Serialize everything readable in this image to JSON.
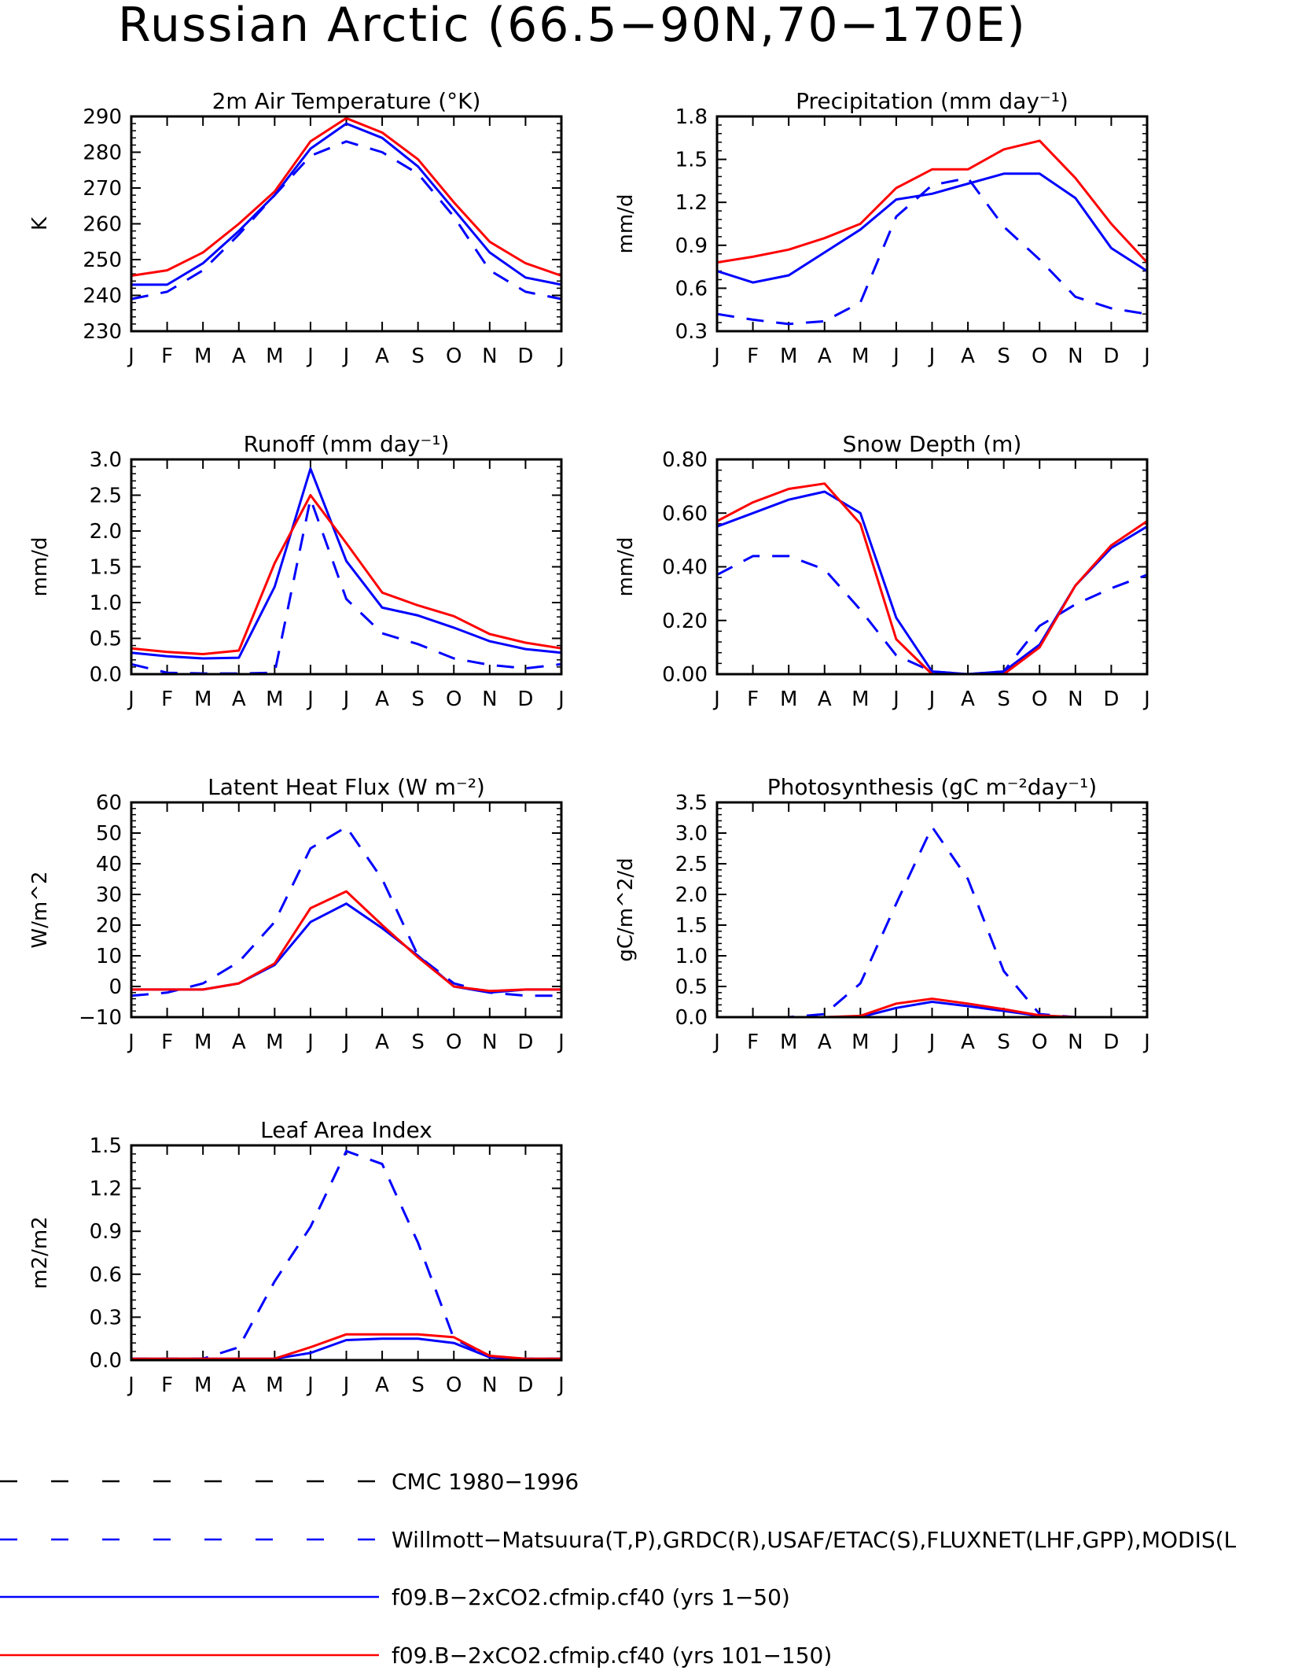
{
  "title": "Russian Arctic (66.5−90N,70−170E)",
  "colors": {
    "obs": "#0000ff",
    "model_a": "#0000ff",
    "model_b": "#ff0000",
    "axis": "#000000"
  },
  "months": [
    "J",
    "F",
    "M",
    "A",
    "M",
    "J",
    "J",
    "A",
    "S",
    "O",
    "N",
    "D",
    "J"
  ],
  "legend": [
    {
      "label": "CMC 1980−1996",
      "color": "#000000",
      "style": "dashed"
    },
    {
      "label": "Willmott−Matsuura(T,P),GRDC(R),USAF/ETAC(S),FLUXNET(LHF,GPP),MODIS(L",
      "color": "#0000ff",
      "style": "dashed"
    },
    {
      "label": "f09.B−2xCO2.cfmip.cf40 (yrs 1−50)",
      "color": "#0000ff",
      "style": "solid"
    },
    {
      "label": "f09.B−2xCO2.cfmip.cf40 (yrs 101−150)",
      "color": "#ff0000",
      "style": "solid"
    }
  ],
  "chart_data": [
    {
      "type": "line",
      "title": "2m Air Temperature (°K)",
      "ylabel": "K",
      "ylim": [
        230,
        290
      ],
      "yticks": [
        "230",
        "240",
        "250",
        "260",
        "270",
        "280",
        "290"
      ],
      "x": [
        "J",
        "F",
        "M",
        "A",
        "M",
        "J",
        "J",
        "A",
        "S",
        "O",
        "N",
        "D",
        "J"
      ],
      "series": [
        {
          "style": "obs",
          "values": [
            239,
            241,
            247,
            257,
            268,
            279,
            283,
            280,
            274,
            262,
            247,
            241,
            239
          ]
        },
        {
          "style": "model_a",
          "values": [
            243,
            243,
            249,
            258,
            268,
            281,
            288,
            284,
            276,
            264,
            252,
            245,
            243
          ]
        },
        {
          "style": "model_b",
          "values": [
            245.5,
            247,
            252,
            260,
            269,
            283,
            289.5,
            285.5,
            278,
            266,
            255,
            249,
            245.5
          ]
        }
      ]
    },
    {
      "type": "line",
      "title": "Precipitation (mm day⁻¹)",
      "ylabel": "mm/d",
      "ylim": [
        0.3,
        1.8
      ],
      "yticks": [
        "0.3",
        "0.6",
        "0.9",
        "1.2",
        "1.5",
        "1.8"
      ],
      "x": [
        "J",
        "F",
        "M",
        "A",
        "M",
        "J",
        "J",
        "A",
        "S",
        "O",
        "N",
        "D",
        "J"
      ],
      "series": [
        {
          "style": "obs",
          "values": [
            0.42,
            0.38,
            0.35,
            0.37,
            0.5,
            1.1,
            1.32,
            1.37,
            1.03,
            0.8,
            0.54,
            0.46,
            0.42
          ]
        },
        {
          "style": "model_a",
          "values": [
            0.72,
            0.64,
            0.69,
            0.85,
            1.01,
            1.22,
            1.26,
            1.33,
            1.4,
            1.4,
            1.23,
            0.88,
            0.72
          ]
        },
        {
          "style": "model_b",
          "values": [
            0.78,
            0.82,
            0.87,
            0.95,
            1.05,
            1.3,
            1.43,
            1.43,
            1.57,
            1.63,
            1.37,
            1.05,
            0.78
          ]
        }
      ]
    },
    {
      "type": "line",
      "title": "Runoff (mm day⁻¹)",
      "ylabel": "mm/d",
      "ylim": [
        0,
        3.0
      ],
      "yticks": [
        "0.0",
        "0.5",
        "1.0",
        "1.5",
        "2.0",
        "2.5",
        "3.0"
      ],
      "x": [
        "J",
        "F",
        "M",
        "A",
        "M",
        "J",
        "J",
        "A",
        "S",
        "O",
        "N",
        "D",
        "J"
      ],
      "series": [
        {
          "style": "obs",
          "values": [
            0.14,
            0.02,
            0.01,
            0.01,
            0.02,
            2.45,
            1.05,
            0.57,
            0.42,
            0.22,
            0.13,
            0.08,
            0.14
          ]
        },
        {
          "style": "model_a",
          "values": [
            0.3,
            0.25,
            0.22,
            0.23,
            1.22,
            2.87,
            1.58,
            0.93,
            0.82,
            0.65,
            0.46,
            0.35,
            0.3
          ]
        },
        {
          "style": "model_b",
          "values": [
            0.36,
            0.31,
            0.28,
            0.33,
            1.55,
            2.5,
            1.83,
            1.14,
            0.96,
            0.81,
            0.56,
            0.44,
            0.36
          ]
        }
      ]
    },
    {
      "type": "line",
      "title": "Snow Depth (m)",
      "ylabel": "mm/d",
      "ylim": [
        0,
        0.8
      ],
      "yticks": [
        "0.00",
        "0.20",
        "0.40",
        "0.60",
        "0.80"
      ],
      "x": [
        "J",
        "F",
        "M",
        "A",
        "M",
        "J",
        "J",
        "A",
        "S",
        "O",
        "N",
        "D",
        "J"
      ],
      "series": [
        {
          "style": "cmc",
          "values": [
            0,
            0,
            0,
            0,
            0,
            0,
            0,
            0,
            0,
            0,
            0,
            0,
            0
          ]
        },
        {
          "style": "obs",
          "values": [
            0.37,
            0.44,
            0.44,
            0.39,
            0.24,
            0.07,
            0.01,
            0.0,
            0.01,
            0.18,
            0.26,
            0.32,
            0.37
          ]
        },
        {
          "style": "model_a",
          "values": [
            0.55,
            0.6,
            0.65,
            0.68,
            0.6,
            0.21,
            0.01,
            0.0,
            0.01,
            0.11,
            0.33,
            0.47,
            0.55
          ]
        },
        {
          "style": "model_b",
          "values": [
            0.57,
            0.64,
            0.69,
            0.71,
            0.56,
            0.13,
            0.0,
            0.0,
            0.0,
            0.1,
            0.33,
            0.48,
            0.57
          ]
        }
      ]
    },
    {
      "type": "line",
      "title": "Latent Heat Flux (W m⁻²)",
      "ylabel": "W/m^2",
      "ylim": [
        -10,
        60
      ],
      "yticks": [
        "−10",
        "0",
        "10",
        "20",
        "30",
        "40",
        "50",
        "60"
      ],
      "x": [
        "J",
        "F",
        "M",
        "A",
        "M",
        "J",
        "J",
        "A",
        "S",
        "O",
        "N",
        "D",
        "J"
      ],
      "series": [
        {
          "style": "obs",
          "values": [
            -3,
            -2,
            1,
            8,
            21,
            45,
            52,
            35,
            10,
            1,
            -2,
            -3,
            -3
          ]
        },
        {
          "style": "model_a",
          "values": [
            -1,
            -1,
            -1,
            1,
            7,
            21,
            27,
            19,
            10,
            0,
            -2,
            -1,
            -1
          ]
        },
        {
          "style": "model_b",
          "values": [
            -1,
            -1,
            -1,
            1,
            7.5,
            25.5,
            31,
            20,
            9.5,
            0,
            -1.5,
            -1,
            -1
          ]
        }
      ]
    },
    {
      "type": "line",
      "title": "Photosynthesis (gC m⁻²day⁻¹)",
      "ylabel": "gC/m^2/d",
      "ylim": [
        0,
        3.5
      ],
      "yticks": [
        "0.0",
        "0.5",
        "1.0",
        "1.5",
        "2.0",
        "2.5",
        "3.0",
        "3.5"
      ],
      "x": [
        "J",
        "F",
        "M",
        "A",
        "M",
        "J",
        "J",
        "A",
        "S",
        "O",
        "N",
        "D",
        "J"
      ],
      "series": [
        {
          "style": "obs",
          "values": [
            0,
            0,
            0,
            0.05,
            0.55,
            1.85,
            3.1,
            2.25,
            0.75,
            0.05,
            0,
            0,
            0
          ]
        },
        {
          "style": "model_a",
          "values": [
            0,
            0,
            0,
            0,
            0,
            0.15,
            0.25,
            0.18,
            0.1,
            0.02,
            0,
            0,
            0
          ]
        },
        {
          "style": "model_b",
          "values": [
            0,
            0,
            0,
            0,
            0.02,
            0.22,
            0.3,
            0.22,
            0.13,
            0.03,
            0,
            0,
            0
          ]
        }
      ]
    },
    {
      "type": "line",
      "title": "Leaf Area Index",
      "ylabel": "m2/m2",
      "ylim": [
        0,
        1.5
      ],
      "yticks": [
        "0.0",
        "0.3",
        "0.6",
        "0.9",
        "1.2",
        "1.5"
      ],
      "x": [
        "J",
        "F",
        "M",
        "A",
        "M",
        "J",
        "J",
        "A",
        "S",
        "O",
        "N",
        "D",
        "J"
      ],
      "series": [
        {
          "style": "obs",
          "values": [
            0.01,
            0.01,
            0.01,
            0.09,
            0.55,
            0.93,
            1.46,
            1.37,
            0.82,
            0.15,
            0.02,
            0.01,
            0.01
          ]
        },
        {
          "style": "model_a",
          "values": [
            0.01,
            0.01,
            0.01,
            0.01,
            0.01,
            0.05,
            0.14,
            0.15,
            0.15,
            0.12,
            0.02,
            0.01,
            0.01
          ]
        },
        {
          "style": "model_b",
          "values": [
            0.01,
            0.01,
            0.01,
            0.01,
            0.01,
            0.09,
            0.18,
            0.18,
            0.18,
            0.16,
            0.03,
            0.01,
            0.01
          ]
        }
      ]
    }
  ]
}
